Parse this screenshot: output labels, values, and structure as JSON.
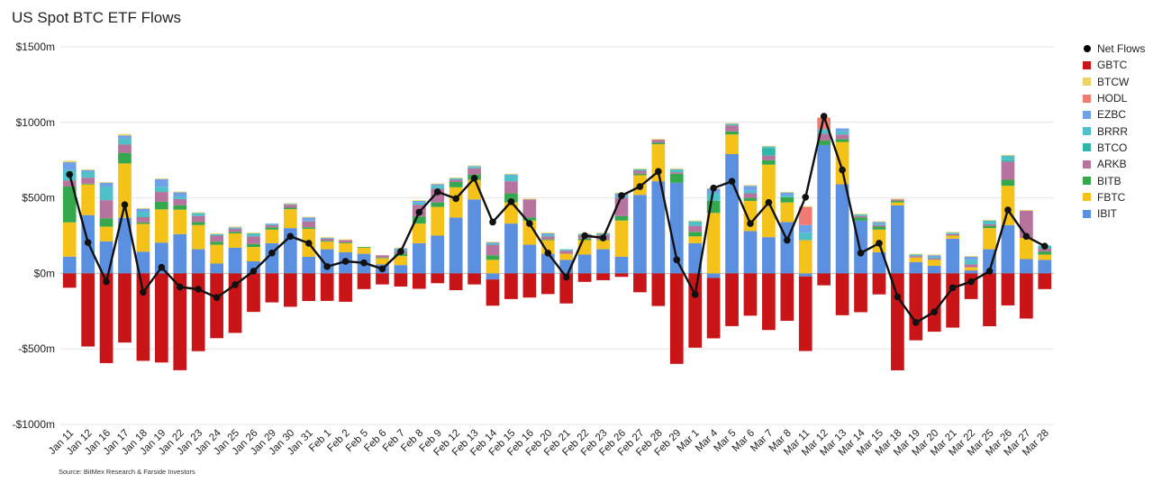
{
  "chart_data": {
    "type": "bar",
    "stacked": true,
    "title": "US Spot BTC ETF Flows",
    "source": "Source: BitMex Research & Farside Investors",
    "ylim": [
      -1000,
      1500
    ],
    "yticks": [
      {
        "value": 1500,
        "label": "$1500m"
      },
      {
        "value": 1000,
        "label": "$1000m"
      },
      {
        "value": 500,
        "label": "$500m"
      },
      {
        "value": 0,
        "label": "$0m"
      },
      {
        "value": -500,
        "label": "-$500m"
      },
      {
        "value": -1000,
        "label": "-$1000m"
      }
    ],
    "grid": true,
    "legend_position": "right",
    "categories": [
      "Jan 11",
      "Jan 12",
      "Jan 16",
      "Jan 17",
      "Jan 18",
      "Jan 19",
      "Jan 22",
      "Jan 23",
      "Jan 24",
      "Jan 25",
      "Jan 26",
      "Jan 29",
      "Jan 30",
      "Jan 31",
      "Feb 1",
      "Feb 2",
      "Feb 5",
      "Feb 6",
      "Feb 7",
      "Feb 8",
      "Feb 9",
      "Feb 12",
      "Feb 13",
      "Feb 14",
      "Feb 15",
      "Feb 16",
      "Feb 20",
      "Feb 21",
      "Feb 22",
      "Feb 23",
      "Feb 26",
      "Feb 27",
      "Feb 28",
      "Feb 29",
      "Mar 1",
      "Mar 4",
      "Mar 5",
      "Mar 6",
      "Mar 7",
      "Mar 8",
      "Mar 11",
      "Mar 12",
      "Mar 13",
      "Mar 14",
      "Mar 15",
      "Mar 18",
      "Mar 19",
      "Mar 20",
      "Mar 21",
      "Mar 22",
      "Mar 25",
      "Mar 26",
      "Mar 27",
      "Mar 28"
    ],
    "series": [
      {
        "name": "IBIT",
        "color": "#5b8fe0",
        "values": [
          111,
          386,
          212,
          368,
          144,
          204,
          260,
          160,
          65,
          170,
          80,
          200,
          300,
          110,
          160,
          140,
          130,
          60,
          55,
          200,
          250,
          370,
          490,
          -40,
          330,
          190,
          130,
          90,
          125,
          160,
          110,
          520,
          610,
          600,
          200,
          -30,
          790,
          280,
          240,
          340,
          -20,
          850,
          590,
          350,
          140,
          450,
          75,
          50,
          230,
          20,
          160,
          320,
          95,
          90
        ]
      },
      {
        "name": "FBTC",
        "color": "#f5c21a",
        "values": [
          227,
          203,
          98,
          360,
          184,
          220,
          162,
          160,
          125,
          95,
          95,
          90,
          125,
          185,
          50,
          60,
          40,
          40,
          60,
          130,
          190,
          200,
          130,
          90,
          140,
          160,
          90,
          40,
          95,
          60,
          240,
          130,
          245,
          0,
          45,
          400,
          130,
          200,
          480,
          130,
          220,
          0,
          280,
          0,
          150,
          20,
          30,
          40,
          20,
          20,
          140,
          260,
          140,
          35
        ]
      },
      {
        "name": "BITB",
        "color": "#35a84e",
        "values": [
          237,
          5,
          55,
          70,
          10,
          50,
          30,
          20,
          20,
          10,
          20,
          15,
          10,
          10,
          5,
          5,
          5,
          5,
          15,
          45,
          30,
          35,
          35,
          30,
          60,
          20,
          5,
          0,
          10,
          5,
          30,
          10,
          10,
          60,
          30,
          80,
          20,
          20,
          30,
          35,
          0,
          30,
          20,
          20,
          20,
          10,
          0,
          0,
          0,
          0,
          15,
          40,
          0,
          20
        ]
      },
      {
        "name": "ARKB",
        "color": "#b5739d",
        "values": [
          41,
          40,
          120,
          55,
          35,
          65,
          40,
          40,
          40,
          20,
          50,
          15,
          20,
          40,
          15,
          15,
          0,
          15,
          15,
          80,
          90,
          15,
          40,
          70,
          80,
          120,
          20,
          20,
          20,
          30,
          120,
          20,
          20,
          10,
          40,
          0,
          40,
          30,
          30,
          0,
          0,
          45,
          30,
          10,
          10,
          10,
          10,
          10,
          10,
          20,
          10,
          120,
          180,
          20
        ]
      },
      {
        "name": "BTCO",
        "color": "#2eb7a8",
        "values": [
          0,
          0,
          0,
          0,
          5,
          5,
          0,
          0,
          0,
          0,
          0,
          0,
          0,
          0,
          0,
          0,
          0,
          0,
          0,
          0,
          0,
          0,
          0,
          0,
          0,
          0,
          0,
          0,
          0,
          0,
          0,
          0,
          0,
          0,
          0,
          0,
          0,
          0,
          50,
          0,
          0,
          0,
          0,
          0,
          0,
          0,
          0,
          0,
          0,
          0,
          0,
          10,
          0,
          10
        ]
      },
      {
        "name": "BRRR",
        "color": "#4fbfc8",
        "values": [
          70,
          40,
          90,
          40,
          30,
          30,
          15,
          20,
          10,
          5,
          20,
          5,
          5,
          5,
          5,
          0,
          0,
          0,
          10,
          15,
          20,
          10,
          10,
          10,
          40,
          0,
          10,
          10,
          10,
          10,
          10,
          10,
          0,
          20,
          30,
          50,
          10,
          20,
          10,
          10,
          50,
          30,
          20,
          10,
          10,
          0,
          10,
          10,
          10,
          30,
          25,
          30,
          0,
          10
        ]
      },
      {
        "name": "EZBC",
        "color": "#6fa0e8",
        "values": [
          50,
          10,
          25,
          20,
          20,
          50,
          30,
          0,
          0,
          5,
          0,
          5,
          0,
          20,
          0,
          0,
          0,
          0,
          10,
          10,
          10,
          0,
          5,
          5,
          5,
          0,
          10,
          0,
          0,
          0,
          20,
          0,
          0,
          0,
          0,
          30,
          0,
          30,
          0,
          20,
          50,
          0,
          20,
          0,
          10,
          0,
          0,
          10,
          0,
          20,
          0,
          0,
          0,
          0
        ]
      },
      {
        "name": "HODL",
        "color": "#ef7b72",
        "values": [
          0,
          0,
          0,
          0,
          0,
          0,
          0,
          0,
          0,
          0,
          0,
          0,
          0,
          0,
          0,
          0,
          0,
          0,
          0,
          0,
          0,
          0,
          0,
          0,
          0,
          0,
          0,
          0,
          0,
          0,
          0,
          0,
          0,
          0,
          0,
          0,
          0,
          0,
          0,
          0,
          120,
          75,
          0,
          0,
          0,
          0,
          0,
          0,
          0,
          0,
          0,
          0,
          0,
          0
        ]
      },
      {
        "name": "BTCW",
        "color": "#ecd468",
        "values": [
          10,
          5,
          5,
          10,
          5,
          5,
          5,
          5,
          5,
          5,
          5,
          0,
          5,
          5,
          5,
          5,
          0,
          0,
          5,
          5,
          5,
          5,
          5,
          5,
          5,
          5,
          5,
          0,
          5,
          5,
          5,
          5,
          5,
          5,
          5,
          5,
          5,
          5,
          5,
          5,
          5,
          5,
          0,
          5,
          5,
          5,
          5,
          5,
          5,
          5,
          5,
          5,
          5,
          0
        ]
      },
      {
        "name": "GBTC",
        "color": "#c91418",
        "values": [
          -95,
          -484,
          -594,
          -458,
          -579,
          -590,
          -641,
          -515,
          -429,
          -394,
          -255,
          -192,
          -221,
          -183,
          -182,
          -188,
          -104,
          -73,
          -87,
          -102,
          -65,
          -111,
          -73,
          -174,
          -170,
          -160,
          -137,
          -199,
          -56,
          -45,
          -23,
          -125,
          -216,
          -599,
          -492,
          -400,
          -349,
          -280,
          -375,
          -314,
          -494,
          -79,
          -277,
          -257,
          -139,
          -642,
          -443,
          -386,
          -359,
          -170,
          -350,
          -212,
          -299,
          -104
        ]
      }
    ],
    "net_flows": {
      "name": "Net Flows",
      "color": "#111111",
      "values": [
        655,
        205,
        -55,
        455,
        -125,
        40,
        -90,
        -105,
        -160,
        -75,
        15,
        135,
        245,
        200,
        45,
        80,
        70,
        30,
        145,
        405,
        540,
        495,
        630,
        340,
        475,
        330,
        135,
        -25,
        250,
        235,
        515,
        575,
        675,
        90,
        -140,
        565,
        610,
        330,
        470,
        220,
        505,
        1040,
        685,
        135,
        200,
        -155,
        -325,
        -255,
        -95,
        -55,
        15,
        420,
        245,
        180
      ]
    }
  }
}
